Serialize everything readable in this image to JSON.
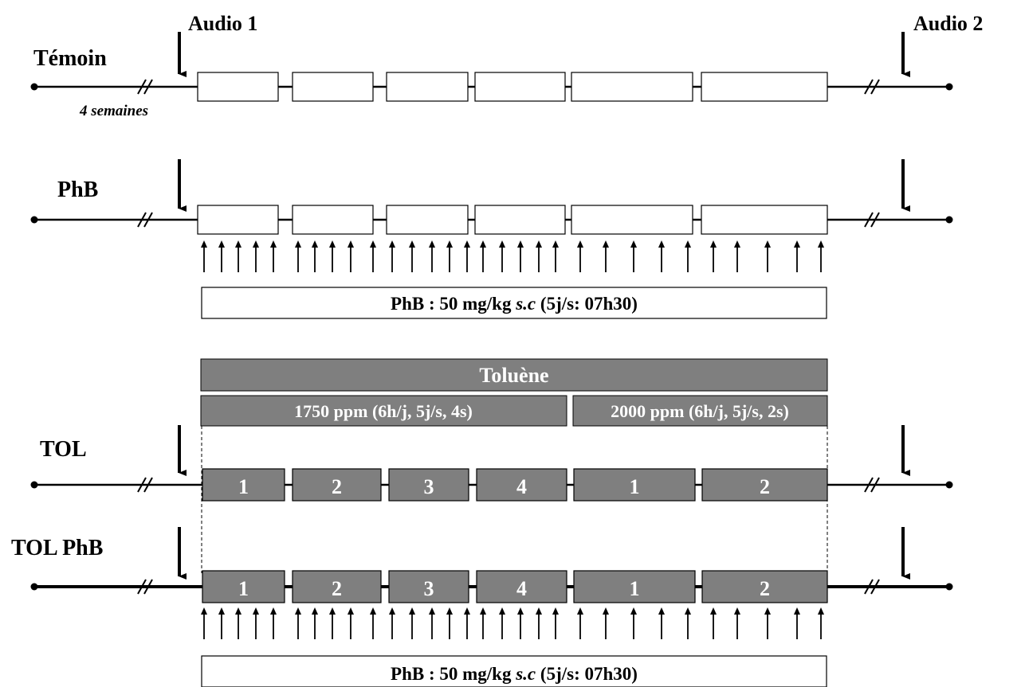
{
  "annotations": {
    "audio1": "Audio 1",
    "audio2": "Audio 2",
    "duration_note": "4 semaines"
  },
  "groups": [
    {
      "name": "Témoin",
      "boxes": "white",
      "box_labels": []
    },
    {
      "name": "PhB",
      "boxes": "white",
      "box_labels": [],
      "injections": true
    },
    {
      "name": "TOL",
      "boxes": "gray",
      "box_labels": [
        "1",
        "2",
        "3",
        "4",
        "1",
        "2"
      ]
    },
    {
      "name": "TOL PhB",
      "boxes": "gray",
      "box_labels": [
        "1",
        "2",
        "3",
        "4",
        "1",
        "2"
      ],
      "injections": true
    }
  ],
  "treatments": {
    "phb_bar": {
      "text_main": "PhB : 50 mg/kg ",
      "text_italic": "s.c",
      "text_tail": " (5j/s: 07h30)"
    },
    "toluene_bar": {
      "title": "Toluène",
      "phase1": "1750 ppm (6h/j, 5j/s, 4s)",
      "phase2": "2000 ppm (6h/j, 5j/s, 2s)"
    }
  },
  "colors": {
    "exposure_fill": "#7f7f7f",
    "control_fill": "#ffffff",
    "line": "#000000"
  }
}
